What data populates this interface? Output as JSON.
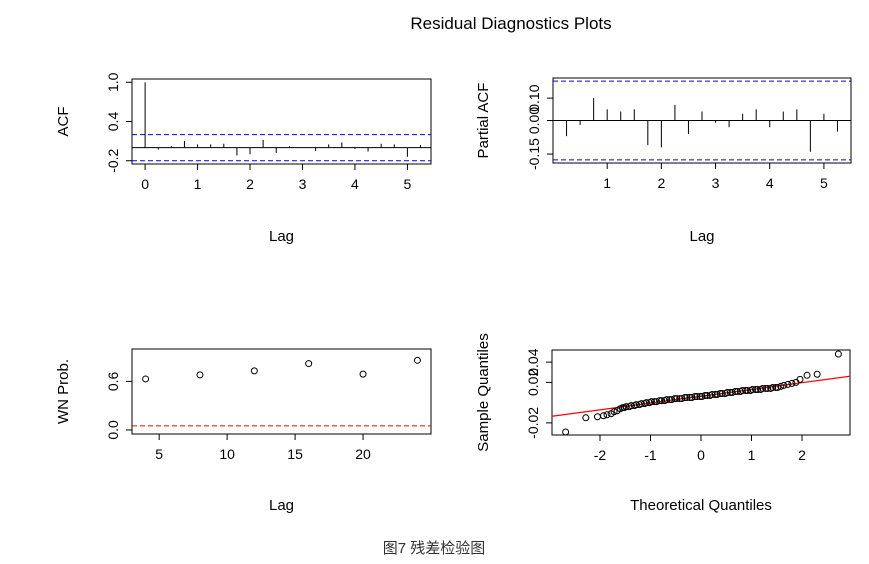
{
  "title": "Residual Diagnostics Plots",
  "caption": "图7 残差检验图",
  "colors": {
    "axis": "#000000",
    "ci": "#0000ff",
    "ref": "#ff0000",
    "qqline": "#ff0000"
  },
  "chart_data": [
    {
      "id": "acf",
      "type": "bar",
      "xlabel": "Lag",
      "ylabel": "ACF",
      "xlim": [
        -0.25,
        5.45
      ],
      "ylim": [
        -0.25,
        1.05
      ],
      "xticks": [
        0,
        1,
        2,
        3,
        4,
        5
      ],
      "xtick_labels": [
        "0",
        "1",
        "2",
        "3",
        "4",
        "5"
      ],
      "yticks": [
        -0.2,
        0.4,
        1.0
      ],
      "ytick_labels": [
        "-0.2",
        "0.4",
        "1.0"
      ],
      "ci": [
        0.2,
        -0.2
      ],
      "lags": [
        0,
        0.25,
        0.5,
        0.75,
        1.0,
        1.25,
        1.5,
        1.75,
        2.0,
        2.25,
        2.5,
        2.75,
        3.0,
        3.25,
        3.5,
        3.75,
        4.0,
        4.25,
        4.5,
        4.75,
        5.0,
        5.25
      ],
      "values": [
        1.0,
        -0.03,
        0.02,
        0.1,
        0.05,
        0.05,
        0.06,
        -0.12,
        -0.1,
        0.12,
        -0.08,
        0.02,
        0.0,
        -0.05,
        0.05,
        0.08,
        -0.02,
        -0.06,
        0.06,
        0.05,
        -0.14,
        0.04
      ]
    },
    {
      "id": "pacf",
      "type": "bar",
      "xlabel": "Lag",
      "ylabel": "Partial ACF",
      "xlim": [
        0.0,
        5.5
      ],
      "ylim": [
        -0.19,
        0.19
      ],
      "xticks": [
        1,
        2,
        3,
        4,
        5
      ],
      "xtick_labels": [
        "1",
        "2",
        "3",
        "4",
        "5"
      ],
      "yticks": [
        -0.15,
        0.0,
        0.1
      ],
      "ytick_labels": [
        "-0.15",
        "0.00",
        "0.10"
      ],
      "ci": [
        0.176,
        -0.176
      ],
      "lags": [
        0.25,
        0.5,
        0.75,
        1.0,
        1.25,
        1.5,
        1.75,
        2.0,
        2.25,
        2.5,
        2.75,
        3.0,
        3.25,
        3.5,
        3.75,
        4.0,
        4.25,
        4.5,
        4.75,
        5.0,
        5.25
      ],
      "values": [
        -0.07,
        -0.02,
        0.1,
        0.05,
        0.04,
        0.05,
        -0.11,
        -0.12,
        0.07,
        -0.06,
        0.04,
        -0.01,
        -0.03,
        0.03,
        0.05,
        -0.03,
        0.04,
        0.05,
        -0.14,
        0.03,
        -0.05
      ]
    },
    {
      "id": "wn",
      "type": "scatter",
      "xlabel": "Lag",
      "ylabel": "WN Prob.",
      "xlim": [
        3,
        25
      ],
      "ylim": [
        -0.05,
        1.0
      ],
      "xticks": [
        5,
        10,
        15,
        20
      ],
      "xtick_labels": [
        "5",
        "10",
        "15",
        "20"
      ],
      "yticks": [
        0.0,
        0.6
      ],
      "ytick_labels": [
        "0.0",
        "0.6"
      ],
      "ref_line": 0.05,
      "x": [
        4,
        8,
        12,
        16,
        20,
        24
      ],
      "y": [
        0.63,
        0.68,
        0.73,
        0.82,
        0.69,
        0.86
      ]
    },
    {
      "id": "qq",
      "type": "scatter",
      "xlabel": "Theoretical Quantiles",
      "ylabel": "Sample Quantiles",
      "xlim": [
        -2.95,
        2.95
      ],
      "ylim": [
        -0.032,
        0.052
      ],
      "xticks": [
        -2,
        -1,
        0,
        1,
        2
      ],
      "xtick_labels": [
        "-2",
        "-1",
        "0",
        "1",
        "2"
      ],
      "yticks": [
        -0.02,
        0.02,
        0.04
      ],
      "ytick_labels": [
        "-0.02",
        "0.02",
        "0.04"
      ],
      "qq_line": {
        "intercept": 0.0063,
        "slope": 0.0067
      },
      "x": [
        -2.68,
        -2.28,
        -2.05,
        -1.93,
        -1.86,
        -1.78,
        -1.72,
        -1.66,
        -1.6,
        -1.55,
        -1.52,
        -1.48,
        -1.42,
        -1.38,
        -1.32,
        -1.28,
        -1.22,
        -1.18,
        -1.12,
        -1.08,
        -1.02,
        -0.98,
        -0.92,
        -0.88,
        -0.82,
        -0.78,
        -0.72,
        -0.68,
        -0.62,
        -0.58,
        -0.52,
        -0.48,
        -0.42,
        -0.38,
        -0.32,
        -0.28,
        -0.22,
        -0.18,
        -0.12,
        -0.08,
        -0.02,
        0.02,
        0.08,
        0.12,
        0.18,
        0.22,
        0.28,
        0.32,
        0.38,
        0.42,
        0.48,
        0.52,
        0.58,
        0.62,
        0.68,
        0.72,
        0.78,
        0.82,
        0.88,
        0.92,
        0.98,
        1.02,
        1.08,
        1.12,
        1.18,
        1.22,
        1.28,
        1.32,
        1.38,
        1.42,
        1.48,
        1.52,
        1.58,
        1.64,
        1.72,
        1.8,
        1.88,
        1.96,
        2.1,
        2.3,
        2.72
      ],
      "y": [
        -0.029,
        -0.015,
        -0.014,
        -0.013,
        -0.012,
        -0.011,
        -0.009,
        -0.008,
        -0.006,
        -0.005,
        -0.005,
        -0.004,
        -0.004,
        -0.003,
        -0.003,
        -0.002,
        -0.002,
        -0.001,
        -0.001,
        0.0,
        0.0,
        0.001,
        0.001,
        0.001,
        0.002,
        0.002,
        0.002,
        0.003,
        0.003,
        0.003,
        0.004,
        0.004,
        0.004,
        0.004,
        0.005,
        0.005,
        0.005,
        0.005,
        0.006,
        0.006,
        0.006,
        0.006,
        0.007,
        0.007,
        0.007,
        0.008,
        0.008,
        0.008,
        0.009,
        0.009,
        0.009,
        0.01,
        0.01,
        0.01,
        0.011,
        0.011,
        0.011,
        0.012,
        0.012,
        0.012,
        0.012,
        0.013,
        0.013,
        0.013,
        0.013,
        0.014,
        0.014,
        0.014,
        0.014,
        0.015,
        0.015,
        0.015,
        0.016,
        0.017,
        0.018,
        0.019,
        0.02,
        0.023,
        0.027,
        0.028,
        0.048
      ]
    }
  ]
}
